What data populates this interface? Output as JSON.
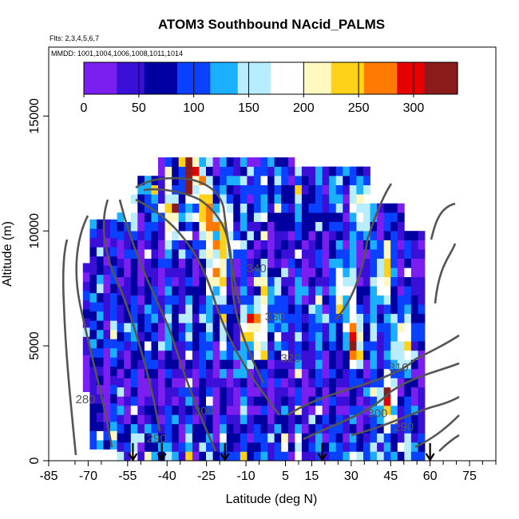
{
  "chart_data": {
    "type": "heatmap",
    "title": "ATOM3 Southbound NAcid_PALMS",
    "flights_label": "Flts: 2,3,4,5,6,7",
    "dates_label": "MMDD: 1001,1004,1006,1008,1011,1014",
    "xlabel": "Latitude (deg N)",
    "ylabel": "Altitude (m)",
    "xlim": [
      -85,
      85
    ],
    "ylim": [
      0,
      18000
    ],
    "x_ticks": [
      -85,
      -70,
      -55,
      -40,
      -25,
      -10,
      5,
      15,
      30,
      45,
      60,
      75
    ],
    "x_tick_labels": [
      "-85",
      "-70",
      "-55",
      "-40",
      "-25",
      "-10",
      "5",
      "15",
      "30",
      "45",
      "60",
      "75"
    ],
    "x_minor_ticks": [
      -75,
      -65,
      -50,
      -35,
      -20,
      -5,
      10,
      20,
      25,
      35,
      40,
      50,
      55,
      65,
      70,
      80,
      85
    ],
    "y_ticks": [
      0,
      5000,
      10000,
      15000
    ],
    "y_tick_labels": [
      "0",
      "5000",
      "10000",
      "15000"
    ],
    "colorbar": {
      "min": 0,
      "max": 340,
      "ticks": [
        0,
        50,
        100,
        150,
        200,
        250,
        300
      ],
      "tick_labels": [
        "0",
        "50",
        "100",
        "150",
        "200",
        "250",
        "300"
      ],
      "colors": [
        "#7a1ff0",
        "#3a10d8",
        "#0000a0",
        "#0a40ff",
        "#1ab0ff",
        "#b8ecff",
        "#ffffff",
        "#fff8c0",
        "#ffd21a",
        "#ff7a00",
        "#e60000",
        "#8b1a1a"
      ]
    },
    "isentrope_labels": [
      {
        "text": "340",
        "lat": -6,
        "alt": 8200
      },
      {
        "text": "330",
        "lat": 1,
        "alt": 6100
      },
      {
        "text": "320",
        "lat": 7,
        "alt": 4300
      },
      {
        "text": "310",
        "lat": 48,
        "alt": 3900
      },
      {
        "text": "300",
        "lat": -26,
        "alt": 2000
      },
      {
        "text": "300",
        "lat": 40,
        "alt": 1900
      },
      {
        "text": "290",
        "lat": -44,
        "alt": 800
      },
      {
        "text": "290",
        "lat": 50,
        "alt": 1300
      },
      {
        "text": "280",
        "lat": -71,
        "alt": 2500
      }
    ],
    "dive_marker_lats": [
      -53,
      -42,
      -18,
      19,
      60
    ]
  }
}
